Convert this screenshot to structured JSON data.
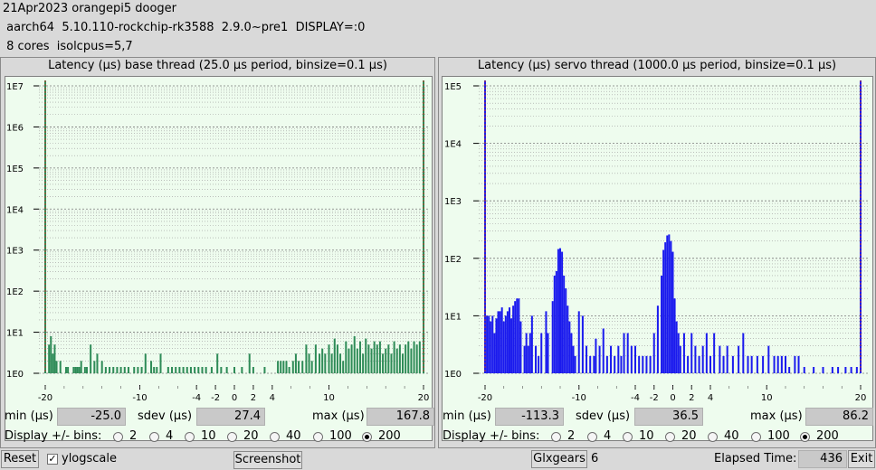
{
  "header": {
    "line1": "21Apr2023 orangepi5 dooger",
    "line2": " aarch64  5.10.110-rockchip-rk3588  2.9.0~pre1  DISPLAY=:0",
    "line3": " 8 cores  isolcpus=5,7"
  },
  "panels": [
    {
      "title": "Latency (µs) base thread (25.0 µs period, binsize=0.1 µs)",
      "min_label": "min (µs)",
      "min_value": "-25.0",
      "sdev_label": "sdev (µs)",
      "sdev_value": "27.4",
      "max_label": "max (µs)",
      "max_value": "167.8",
      "bins_label": "Display +/- bins:",
      "bins_options": [
        "2",
        "4",
        "10",
        "20",
        "40",
        "100",
        "200"
      ],
      "bins_selected": "200"
    },
    {
      "title": "Latency (µs) servo thread (1000.0 µs period, binsize=0.1 µs)",
      "min_label": "min (µs)",
      "min_value": "-113.3",
      "sdev_label": "sdev (µs)",
      "sdev_value": "36.5",
      "max_label": "max (µs)",
      "max_value": "86.2",
      "bins_label": "Display +/- bins:",
      "bins_options": [
        "2",
        "4",
        "10",
        "20",
        "40",
        "100",
        "200"
      ],
      "bins_selected": "200"
    }
  ],
  "footer": {
    "reset": "Reset",
    "ylogscale": "ylogscale",
    "ylogscale_checked": true,
    "screenshot": "Screenshot",
    "glxgears": "Glxgears",
    "glxgears_count": "6",
    "elapsed_label": "Elapsed Time:",
    "elapsed_value": "436",
    "exit": "Exit"
  },
  "chart_data": [
    {
      "type": "bar",
      "title": "Latency (µs) base thread (25.0 µs period, binsize=0.1 µs)",
      "color": "#2e8b57",
      "marker_color": "#c0392b",
      "yscale": "log",
      "ylim_decades": [
        0,
        7
      ],
      "ytick_labels": [
        "1E0",
        "1E1",
        "1E2",
        "1E3",
        "1E4",
        "1E5",
        "1E6",
        "1E7"
      ],
      "xlim": [
        -20,
        20
      ],
      "xtick_values": [
        -20,
        -10,
        -4,
        -2,
        0,
        2,
        4,
        10,
        20
      ],
      "xtick_labels": [
        "-20",
        "-10",
        "-4",
        "-2",
        "0",
        "2",
        "4",
        "10",
        "20"
      ],
      "min_marker": -20,
      "max_marker": 20,
      "x": [
        -19.6,
        -19.4,
        -19.2,
        -19.0,
        -18.8,
        -18.4,
        -17.8,
        -17.6,
        -17.0,
        -16.8,
        -16.6,
        -16.4,
        -16.2,
        -15.8,
        -15.6,
        -15.2,
        -14.8,
        -14.5,
        -14.0,
        -13.6,
        -13.2,
        -12.8,
        -12.4,
        -12.0,
        -11.6,
        -11.2,
        -10.6,
        -10.2,
        -9.8,
        -9.4,
        -8.8,
        -8.5,
        -8.2,
        -7.8,
        -7.0,
        -6.6,
        -6.2,
        -5.8,
        -5.4,
        -5.0,
        -4.6,
        -4.2,
        -3.8,
        -3.4,
        -3.0,
        -2.4,
        -1.8,
        -1.4,
        -0.8,
        0.0,
        0.8,
        1.6,
        2.0,
        3.2,
        4.6,
        4.9,
        5.2,
        5.5,
        5.8,
        6.2,
        6.5,
        6.8,
        7.2,
        7.6,
        7.9,
        8.2,
        8.6,
        9.0,
        9.3,
        9.6,
        10.0,
        10.3,
        10.6,
        10.9,
        11.2,
        11.5,
        11.8,
        12.1,
        12.4,
        12.7,
        13.0,
        13.3,
        13.6,
        13.9,
        14.2,
        14.5,
        14.8,
        15.1,
        15.4,
        15.7,
        16.0,
        16.3,
        16.6,
        16.9,
        17.2,
        17.5,
        17.8,
        18.1,
        18.4,
        18.7,
        19.0,
        19.3,
        19.6
      ],
      "values": [
        5,
        8,
        3,
        5,
        2,
        2,
        1,
        1,
        1,
        1,
        1,
        1,
        2,
        1,
        1,
        5,
        2,
        3,
        2,
        1,
        1,
        1,
        1,
        1,
        1,
        1,
        1,
        1,
        1,
        3,
        2,
        1,
        1,
        3,
        1,
        1,
        1,
        1,
        1,
        1,
        1,
        1,
        1,
        1,
        1,
        1,
        3,
        1,
        1,
        1,
        1,
        3,
        1,
        1,
        2,
        2,
        2,
        2,
        1,
        2,
        3,
        2,
        2,
        5,
        3,
        2,
        5,
        3,
        4,
        3,
        5,
        3,
        7,
        5,
        3,
        2,
        6,
        4,
        5,
        8,
        4,
        6,
        3,
        7,
        5,
        4,
        6,
        5,
        6,
        3,
        4,
        5,
        3,
        6,
        4,
        5,
        3,
        5,
        6,
        4,
        6,
        5,
        6
      ]
    },
    {
      "type": "bar",
      "title": "Latency (µs) servo thread (1000.0 µs period, binsize=0.1 µs)",
      "color": "#1a1aee",
      "marker_color": "#c0392b",
      "yscale": "log",
      "ylim_decades": [
        0,
        5
      ],
      "ytick_labels": [
        "1E0",
        "1E1",
        "1E2",
        "1E3",
        "1E4",
        "1E5"
      ],
      "xlim": [
        -20,
        20
      ],
      "xtick_values": [
        -20,
        -10,
        -4,
        -2,
        0,
        2,
        4,
        10,
        20
      ],
      "xtick_labels": [
        "-20",
        "-10",
        "-4",
        "-2",
        "0",
        "2",
        "4",
        "10",
        "20"
      ],
      "min_marker": -20,
      "max_marker": 20,
      "x": [
        -19.8,
        -19.6,
        -19.4,
        -19.2,
        -19.0,
        -18.8,
        -18.6,
        -18.4,
        -18.2,
        -18.0,
        -17.8,
        -17.6,
        -17.4,
        -17.2,
        -17.0,
        -16.8,
        -16.6,
        -16.4,
        -16.2,
        -15.8,
        -15.6,
        -15.4,
        -15.2,
        -15.0,
        -14.6,
        -14.3,
        -14.0,
        -13.5,
        -13.3,
        -12.8,
        -12.6,
        -12.4,
        -12.2,
        -12.0,
        -11.8,
        -11.6,
        -11.4,
        -11.2,
        -11.0,
        -10.8,
        -10.6,
        -10.4,
        -10.0,
        -9.6,
        -9.2,
        -8.8,
        -8.4,
        -8.2,
        -7.8,
        -7.4,
        -7.0,
        -6.6,
        -6.2,
        -5.8,
        -5.5,
        -5.2,
        -4.8,
        -4.4,
        -4.0,
        -3.6,
        -3.2,
        -2.8,
        -2.4,
        -2.0,
        -1.6,
        -1.2,
        -1.0,
        -0.8,
        -0.6,
        -0.4,
        -0.2,
        0.0,
        0.2,
        0.4,
        0.6,
        0.8,
        1.2,
        1.6,
        2.0,
        2.4,
        2.8,
        3.2,
        3.6,
        4.0,
        4.4,
        5.0,
        5.4,
        5.8,
        6.4,
        7.0,
        7.5,
        8.0,
        8.4,
        9.0,
        9.6,
        10.2,
        10.8,
        11.2,
        11.6,
        12.0,
        12.4,
        13.0,
        13.4,
        14.0,
        15.0,
        16.0,
        17.0,
        17.6,
        18.4,
        19.0,
        19.6
      ],
      "values": [
        10,
        10,
        8,
        10,
        5,
        9,
        12,
        12,
        14,
        8,
        10,
        12,
        14,
        9,
        15,
        18,
        20,
        20,
        8,
        3,
        5,
        3,
        5,
        10,
        3,
        2,
        5,
        12,
        5,
        18,
        50,
        60,
        145,
        150,
        130,
        50,
        30,
        15,
        8,
        5,
        3,
        2,
        12,
        10,
        3,
        2,
        2,
        4,
        3,
        6,
        2,
        3,
        2,
        3,
        2,
        5,
        5,
        3,
        3,
        2,
        2,
        2,
        2,
        5,
        15,
        50,
        140,
        190,
        250,
        260,
        200,
        130,
        20,
        8,
        5,
        3,
        5,
        2,
        5,
        3,
        2,
        3,
        5,
        2,
        5,
        3,
        2,
        3,
        2,
        3,
        5,
        2,
        2,
        2,
        2,
        3,
        2,
        2,
        2,
        2,
        1,
        2,
        2,
        1,
        1,
        1,
        1,
        1,
        1,
        1,
        1
      ]
    }
  ]
}
